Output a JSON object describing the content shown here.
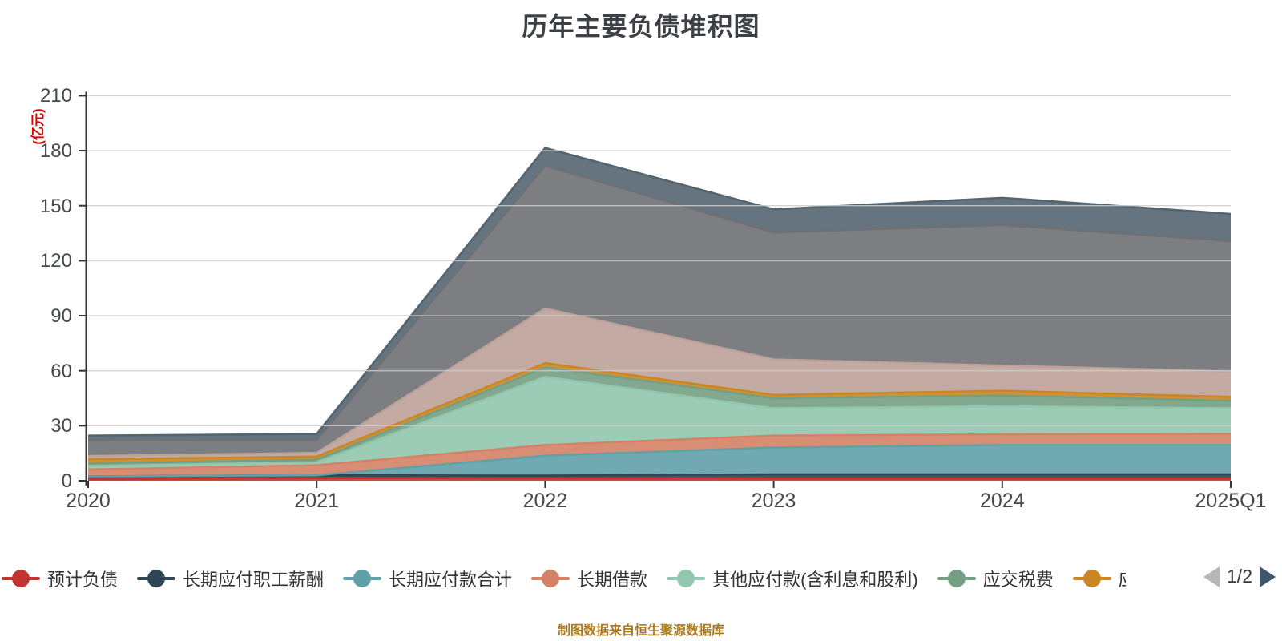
{
  "title": "历年主要负债堆积图",
  "footer": {
    "text": "制图数据来自恒生聚源数据库"
  },
  "legend": {
    "page": "1/2",
    "items": [
      {
        "label": "预计负债",
        "color": "#c23531",
        "clipped": false
      },
      {
        "label": "长期应付职工薪酬",
        "color": "#2f4554",
        "clipped": false
      },
      {
        "label": "长期应付款合计",
        "color": "#61a0a8",
        "clipped": false
      },
      {
        "label": "长期借款",
        "color": "#d48265",
        "clipped": false
      },
      {
        "label": "其他应付款(含利息和股利)",
        "color": "#91c7ae",
        "clipped": false
      },
      {
        "label": "应交税费",
        "color": "#749f83",
        "clipped": false
      },
      {
        "label": "应",
        "color": "#ca8622",
        "clipped": true
      }
    ]
  },
  "chart_data": {
    "type": "area",
    "stacked": true,
    "title": "历年主要负债堆积图",
    "xlabel": "",
    "ylabel": "(亿元)",
    "categories": [
      "2020",
      "2021",
      "2022",
      "2023",
      "2024",
      "2025Q1"
    ],
    "ylim": [
      0,
      210
    ],
    "ytick_step": 30,
    "grid": true,
    "legend_position": "bottom",
    "series": [
      {
        "name": "预计负债",
        "color": "#c23531",
        "values": [
          0.9,
          1.5,
          1.3,
          1.2,
          1.2,
          1.2
        ]
      },
      {
        "name": "长期应付职工薪酬",
        "color": "#2f4554",
        "values": [
          1.5,
          1.5,
          1.5,
          2.3,
          2.3,
          2.3
        ]
      },
      {
        "name": "长期应付款合计",
        "color": "#61a0a8",
        "values": [
          0,
          0,
          10.9,
          14.6,
          16.0,
          16.0
        ]
      },
      {
        "name": "长期借款",
        "color": "#d48265",
        "values": [
          3.8,
          5.5,
          5.8,
          6.5,
          5.8,
          6.0
        ]
      },
      {
        "name": "其他应付款(含利息和股利)",
        "color": "#91c7ae",
        "values": [
          1.8,
          1.5,
          37.2,
          14.9,
          15.3,
          14.0
        ]
      },
      {
        "name": "应交税费",
        "color": "#749f83",
        "values": [
          1.5,
          1.5,
          5.1,
          5.5,
          5.9,
          4.1
        ]
      },
      {
        "name": "应",
        "color": "#ca8622",
        "values": [
          2.2,
          1.7,
          2.4,
          1.8,
          2.6,
          2.1
        ]
      },
      {
        "name": "",
        "color": "#bda29a",
        "values": [
          1.8,
          2.0,
          29.7,
          19.4,
          13.7,
          13.9
        ]
      },
      {
        "name": "",
        "color": "#6e7074",
        "values": [
          8.7,
          7.0,
          77.9,
          69.2,
          76.7,
          71.1
        ]
      },
      {
        "name": "",
        "color": "#546570",
        "values": [
          2.4,
          3.3,
          9.7,
          12.6,
          14.8,
          14.8
        ]
      }
    ]
  },
  "colors": {
    "axis": "#333333",
    "grid": "#cccccc",
    "tick_label": "#46494d",
    "title": "#3d4145",
    "unit_label": "#e00000",
    "footer": "#ab7a1e",
    "pager_prev": "#b4b8bb",
    "pager_next": "#41566a"
  }
}
